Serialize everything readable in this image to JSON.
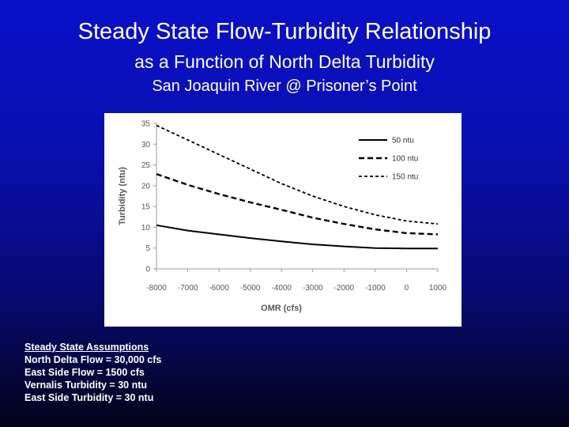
{
  "slide": {
    "title": "Steady State Flow-Turbidity Relationship",
    "subtitle": "as a Function of North Delta Turbidity",
    "location": "San Joaquin River @ Prisoner’s Point"
  },
  "assumptions": {
    "heading": "Steady State Assumptions",
    "lines": [
      "North Delta Flow = 30,000 cfs",
      "East Side Flow = 1500 cfs",
      "Vernalis Turbidity = 30 ntu",
      "East Side Turbidity = 30 ntu"
    ]
  },
  "chart_data": {
    "type": "line",
    "xlabel": "OMR (cfs)",
    "ylabel": "Turbidity (ntu)",
    "xlim": [
      -8000,
      1000
    ],
    "ylim": [
      0,
      35
    ],
    "x_ticks": [
      -8000,
      -7000,
      -6000,
      -5000,
      -4000,
      -3000,
      -2000,
      -1000,
      0,
      1000
    ],
    "x_tick_labels": [
      "-8000",
      "-7000",
      "-6000",
      "-5000",
      "-4000",
      "-3000",
      "-2000",
      "-1000",
      "0",
      "1000"
    ],
    "y_ticks": [
      0,
      5,
      10,
      15,
      20,
      25,
      30,
      35
    ],
    "y_tick_labels": [
      "0",
      "5",
      "10",
      "15",
      "20",
      "25",
      "30",
      "35"
    ],
    "grid": false,
    "legend_position": "top-right",
    "x": [
      -8000,
      -7000,
      -6000,
      -5000,
      -4000,
      -3000,
      -2000,
      -1000,
      0,
      1000
    ],
    "series": [
      {
        "name": "50 ntu",
        "style": "solid",
        "values": [
          10.5,
          9.2,
          8.3,
          7.4,
          6.6,
          5.9,
          5.4,
          5.0,
          4.9,
          4.9
        ]
      },
      {
        "name": "100 ntu",
        "style": "dashed",
        "values": [
          22.8,
          20.2,
          18.0,
          16.0,
          14.2,
          12.3,
          10.8,
          9.5,
          8.6,
          8.3
        ]
      },
      {
        "name": "150 ntu",
        "style": "dotted-dash",
        "values": [
          34.5,
          31.0,
          27.5,
          24.0,
          20.5,
          17.5,
          15.0,
          13.0,
          11.5,
          10.8
        ]
      }
    ]
  },
  "colors": {
    "line": "#000000",
    "axis": "#999999"
  }
}
